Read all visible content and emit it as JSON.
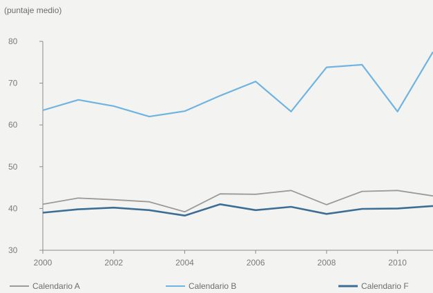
{
  "chart_data": {
    "type": "line",
    "ylabel": "(puntaje medio)",
    "x": [
      2000,
      2001,
      2002,
      2003,
      2004,
      2005,
      2006,
      2007,
      2008,
      2009,
      2010,
      2011
    ],
    "xticks": [
      "2000",
      "2002",
      "2004",
      "2006",
      "2008",
      "2010"
    ],
    "yticks": [
      "30",
      "40",
      "50",
      "60",
      "70",
      "80"
    ],
    "ylim": [
      30,
      80
    ],
    "grid": false,
    "legend_position": "bottom",
    "series": [
      {
        "name": "Calendario A",
        "color": "#9a9a9a",
        "values": [
          41.0,
          42.5,
          42.1,
          41.6,
          39.2,
          43.5,
          43.4,
          44.3,
          40.9,
          44.1,
          44.3,
          43.0
        ]
      },
      {
        "name": "Calendario B",
        "color": "#6fb3e0",
        "values": [
          63.5,
          66.0,
          64.5,
          62.0,
          63.3,
          67.0,
          70.4,
          63.2,
          73.8,
          74.4,
          63.2,
          77.5
        ]
      },
      {
        "name": "Calendario F",
        "color": "#3c6e95",
        "values": [
          39.0,
          39.8,
          40.2,
          39.6,
          38.3,
          41.0,
          39.6,
          40.4,
          38.7,
          39.9,
          40.0,
          40.6
        ]
      }
    ]
  }
}
